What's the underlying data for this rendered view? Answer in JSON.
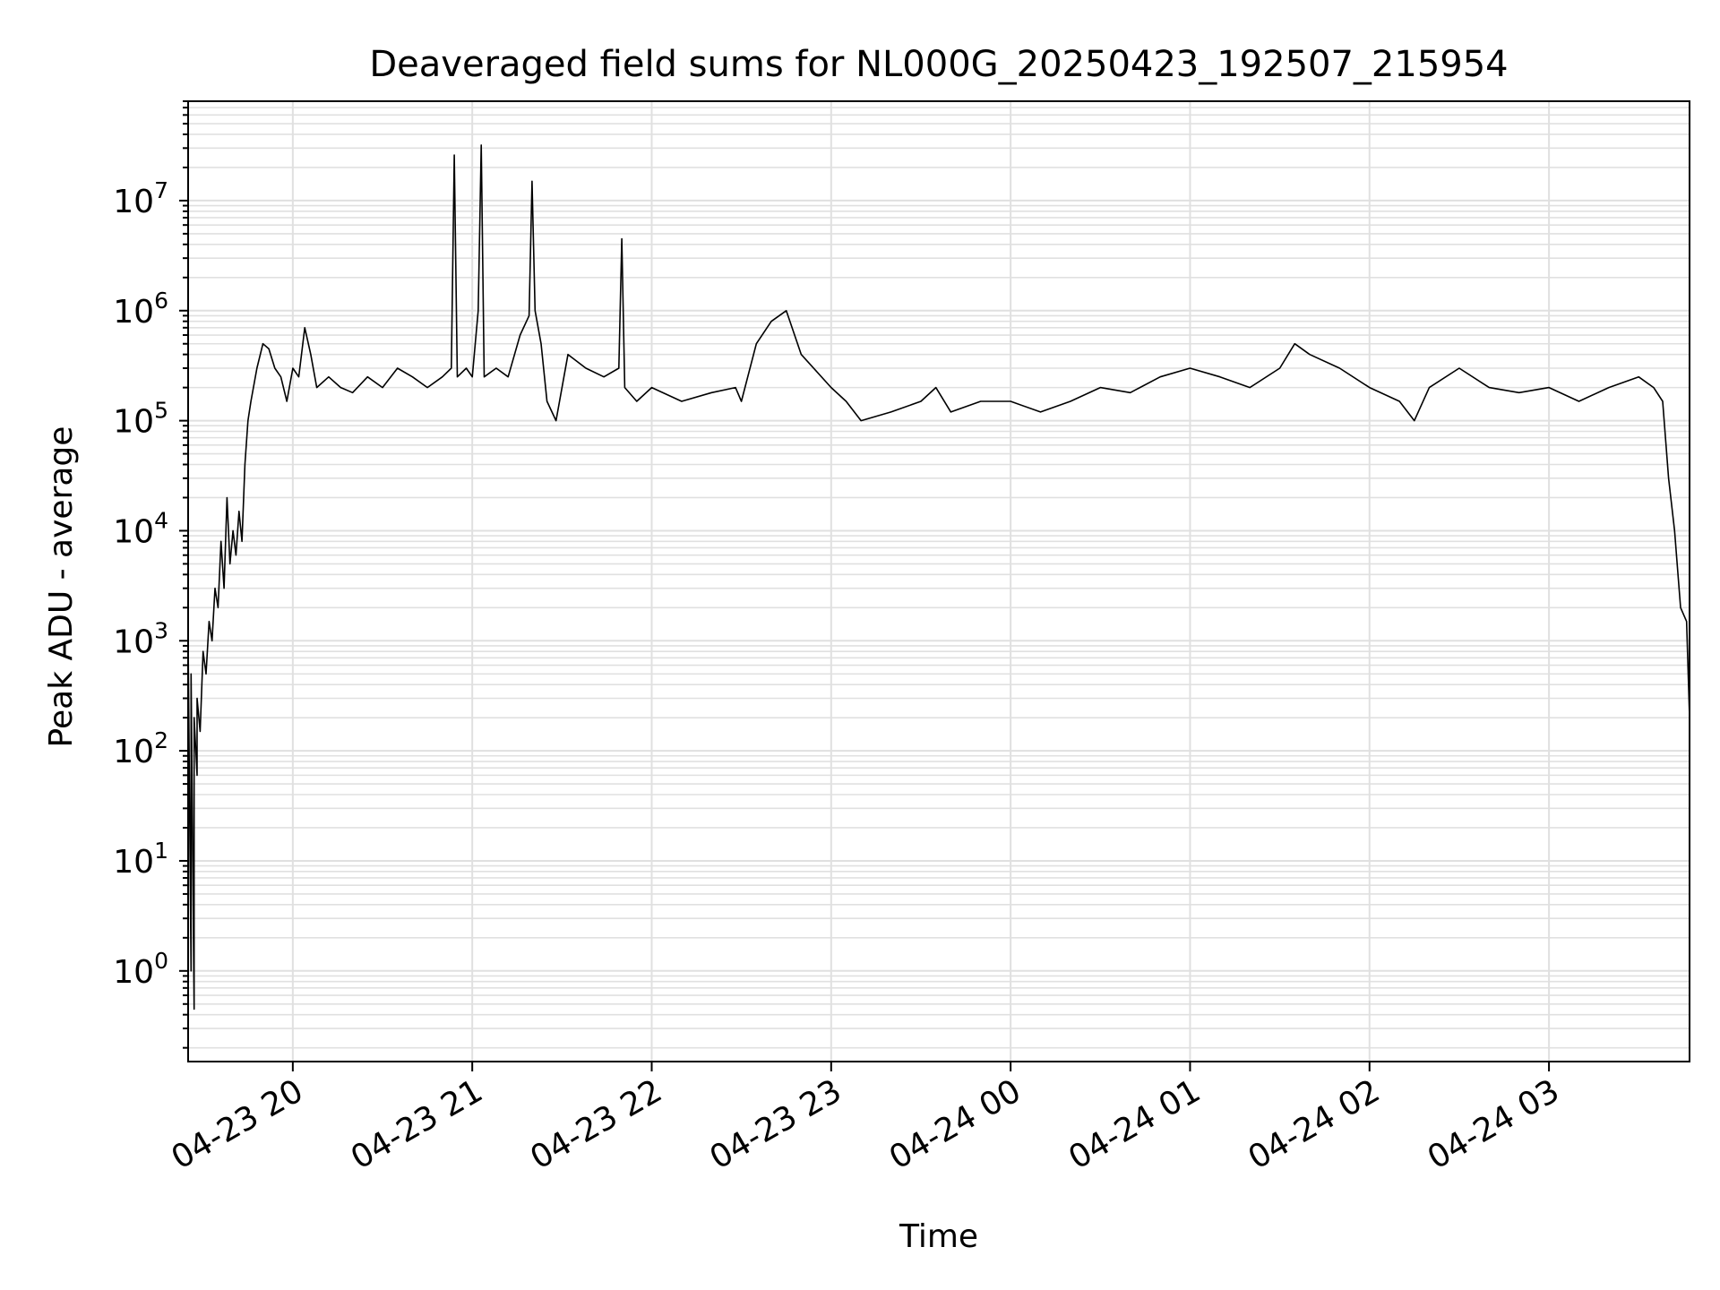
{
  "chart_data": {
    "type": "line",
    "title": "Deaveraged field sums for NL000G_20250423_192507_215954",
    "xlabel": "Time",
    "ylabel": "Peak ADU - average",
    "y_scale": "log",
    "ylim": [
      0.15,
      80000000
    ],
    "xlim": [
      "2025-04-23 19:25",
      "2025-04-24 03:47"
    ],
    "grid": true,
    "grid_minor": true,
    "line_color": "#000000",
    "grid_color": "#e0e0e0",
    "x_ticks": [
      {
        "label": "04-23 20",
        "time": "2025-04-23 20:00"
      },
      {
        "label": "04-23 21",
        "time": "2025-04-23 21:00"
      },
      {
        "label": "04-23 22",
        "time": "2025-04-23 22:00"
      },
      {
        "label": "04-23 23",
        "time": "2025-04-23 23:00"
      },
      {
        "label": "04-24 00",
        "time": "2025-04-24 00:00"
      },
      {
        "label": "04-24 01",
        "time": "2025-04-24 01:00"
      },
      {
        "label": "04-24 02",
        "time": "2025-04-24 02:00"
      },
      {
        "label": "04-24 03",
        "time": "2025-04-24 03:00"
      }
    ],
    "y_ticks": [
      {
        "base": "10",
        "exp": "0",
        "value": 1
      },
      {
        "base": "10",
        "exp": "1",
        "value": 10
      },
      {
        "base": "10",
        "exp": "2",
        "value": 100
      },
      {
        "base": "10",
        "exp": "3",
        "value": 1000
      },
      {
        "base": "10",
        "exp": "4",
        "value": 10000
      },
      {
        "base": "10",
        "exp": "5",
        "value": 100000
      },
      {
        "base": "10",
        "exp": "6",
        "value": 1000000
      },
      {
        "base": "10",
        "exp": "7",
        "value": 10000000
      }
    ],
    "series": [
      {
        "x": [
          "2025-04-23 19:25",
          "2025-04-23 19:25",
          "2025-04-23 19:26",
          "2025-04-23 19:26",
          "2025-04-23 19:27",
          "2025-04-23 19:27",
          "2025-04-23 19:28",
          "2025-04-23 19:28",
          "2025-04-23 19:29",
          "2025-04-23 19:30",
          "2025-04-23 19:31",
          "2025-04-23 19:32",
          "2025-04-23 19:33",
          "2025-04-23 19:34",
          "2025-04-23 19:35",
          "2025-04-23 19:36",
          "2025-04-23 19:37",
          "2025-04-23 19:38",
          "2025-04-23 19:39",
          "2025-04-23 19:40",
          "2025-04-23 19:41",
          "2025-04-23 19:42",
          "2025-04-23 19:43",
          "2025-04-23 19:44",
          "2025-04-23 19:45",
          "2025-04-23 19:46",
          "2025-04-23 19:48",
          "2025-04-23 19:50",
          "2025-04-23 19:52",
          "2025-04-23 19:54",
          "2025-04-23 19:56",
          "2025-04-23 19:58",
          "2025-04-23 20:00",
          "2025-04-23 20:02",
          "2025-04-23 20:04",
          "2025-04-23 20:06",
          "2025-04-23 20:08",
          "2025-04-23 20:12",
          "2025-04-23 20:16",
          "2025-04-23 20:20",
          "2025-04-23 20:25",
          "2025-04-23 20:30",
          "2025-04-23 20:35",
          "2025-04-23 20:40",
          "2025-04-23 20:45",
          "2025-04-23 20:50",
          "2025-04-23 20:53",
          "2025-04-23 20:54",
          "2025-04-23 20:55",
          "2025-04-23 20:58",
          "2025-04-23 21:00",
          "2025-04-23 21:02",
          "2025-04-23 21:03",
          "2025-04-23 21:04",
          "2025-04-23 21:08",
          "2025-04-23 21:12",
          "2025-04-23 21:16",
          "2025-04-23 21:19",
          "2025-04-23 21:20",
          "2025-04-23 21:21",
          "2025-04-23 21:23",
          "2025-04-23 21:25",
          "2025-04-23 21:28",
          "2025-04-23 21:32",
          "2025-04-23 21:38",
          "2025-04-23 21:44",
          "2025-04-23 21:49",
          "2025-04-23 21:50",
          "2025-04-23 21:51",
          "2025-04-23 21:55",
          "2025-04-23 22:00",
          "2025-04-23 22:10",
          "2025-04-23 22:20",
          "2025-04-23 22:28",
          "2025-04-23 22:30",
          "2025-04-23 22:35",
          "2025-04-23 22:40",
          "2025-04-23 22:45",
          "2025-04-23 22:50",
          "2025-04-23 23:00",
          "2025-04-23 23:05",
          "2025-04-23 23:10",
          "2025-04-23 23:20",
          "2025-04-23 23:30",
          "2025-04-23 23:35",
          "2025-04-23 23:40",
          "2025-04-23 23:50",
          "2025-04-24 00:00",
          "2025-04-24 00:10",
          "2025-04-24 00:20",
          "2025-04-24 00:30",
          "2025-04-24 00:40",
          "2025-04-24 00:50",
          "2025-04-24 01:00",
          "2025-04-24 01:10",
          "2025-04-24 01:20",
          "2025-04-24 01:30",
          "2025-04-24 01:35",
          "2025-04-24 01:40",
          "2025-04-24 01:50",
          "2025-04-24 02:00",
          "2025-04-24 02:10",
          "2025-04-24 02:15",
          "2025-04-24 02:20",
          "2025-04-24 02:30",
          "2025-04-24 02:40",
          "2025-04-24 02:50",
          "2025-04-24 03:00",
          "2025-04-24 03:10",
          "2025-04-24 03:20",
          "2025-04-24 03:30",
          "2025-04-24 03:35",
          "2025-04-24 03:38",
          "2025-04-24 03:40",
          "2025-04-24 03:42",
          "2025-04-24 03:44",
          "2025-04-24 03:46",
          "2025-04-24 03:47"
        ],
        "y": [
          0.2,
          1000,
          1,
          500,
          0.45,
          200,
          60,
          300,
          150,
          800,
          500,
          1500,
          1000,
          3000,
          2000,
          8000,
          3000,
          20000,
          5000,
          10000,
          6000,
          15000,
          8000,
          40000,
          100000,
          150000,
          300000,
          500000,
          450000,
          300000,
          250000,
          150000,
          300000,
          250000,
          700000,
          400000,
          200000,
          250000,
          200000,
          180000,
          250000,
          200000,
          300000,
          250000,
          200000,
          250000,
          300000,
          26000000,
          250000,
          300000,
          250000,
          1000000,
          32000000,
          250000,
          300000,
          250000,
          600000,
          900000,
          15000000,
          1000000,
          500000,
          150000,
          100000,
          400000,
          300000,
          250000,
          300000,
          4500000,
          200000,
          150000,
          200000,
          150000,
          180000,
          200000,
          150000,
          500000,
          800000,
          1000000,
          400000,
          200000,
          150000,
          100000,
          120000,
          150000,
          200000,
          120000,
          150000,
          150000,
          120000,
          150000,
          200000,
          180000,
          250000,
          300000,
          250000,
          200000,
          300000,
          500000,
          400000,
          300000,
          200000,
          150000,
          100000,
          200000,
          300000,
          200000,
          180000,
          200000,
          150000,
          200000,
          250000,
          200000,
          150000,
          30000,
          10000,
          2000,
          1500,
          200
        ]
      }
    ]
  }
}
